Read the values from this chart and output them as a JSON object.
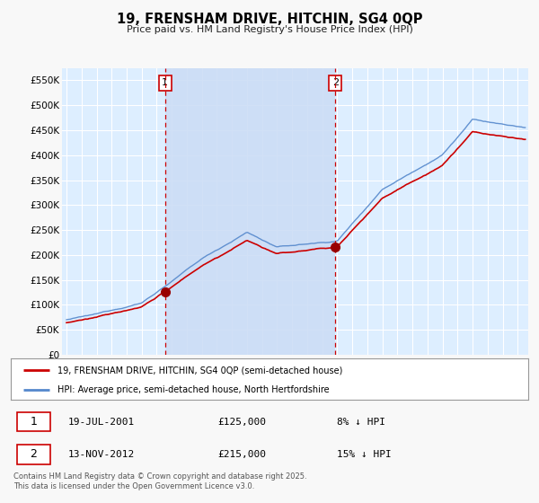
{
  "title": "19, FRENSHAM DRIVE, HITCHIN, SG4 0QP",
  "subtitle": "Price paid vs. HM Land Registry's House Price Index (HPI)",
  "ylabel_ticks": [
    "£0",
    "£50K",
    "£100K",
    "£150K",
    "£200K",
    "£250K",
    "£300K",
    "£350K",
    "£400K",
    "£450K",
    "£500K",
    "£550K"
  ],
  "ytick_values": [
    0,
    50000,
    100000,
    150000,
    200000,
    250000,
    300000,
    350000,
    400000,
    450000,
    500000,
    550000
  ],
  "ylim": [
    0,
    575000
  ],
  "x_start_year": 1995,
  "x_end_year": 2025,
  "sale1_date": 2001.55,
  "sale1_price": 125000,
  "sale1_label": "1",
  "sale1_text": "19-JUL-2001",
  "sale1_price_text": "£125,000",
  "sale1_pct_text": "8% ↓ HPI",
  "sale2_date": 2012.87,
  "sale2_price": 215000,
  "sale2_label": "2",
  "sale2_text": "13-NOV-2012",
  "sale2_price_text": "£215,000",
  "sale2_pct_text": "15% ↓ HPI",
  "legend_line1": "19, FRENSHAM DRIVE, HITCHIN, SG4 0QP (semi-detached house)",
  "legend_line2": "HPI: Average price, semi-detached house, North Hertfordshire",
  "footer": "Contains HM Land Registry data © Crown copyright and database right 2025.\nThis data is licensed under the Open Government Licence v3.0.",
  "line_color_price": "#cc0000",
  "line_color_hpi": "#5588cc",
  "background_color": "#ffffff",
  "plot_bg_color": "#ddeeff",
  "grid_color": "#ffffff",
  "shade_color": "#ccddf5",
  "vline_color": "#cc0000",
  "marker_color_price": "#990000",
  "fig_bg": "#f8f8f8"
}
